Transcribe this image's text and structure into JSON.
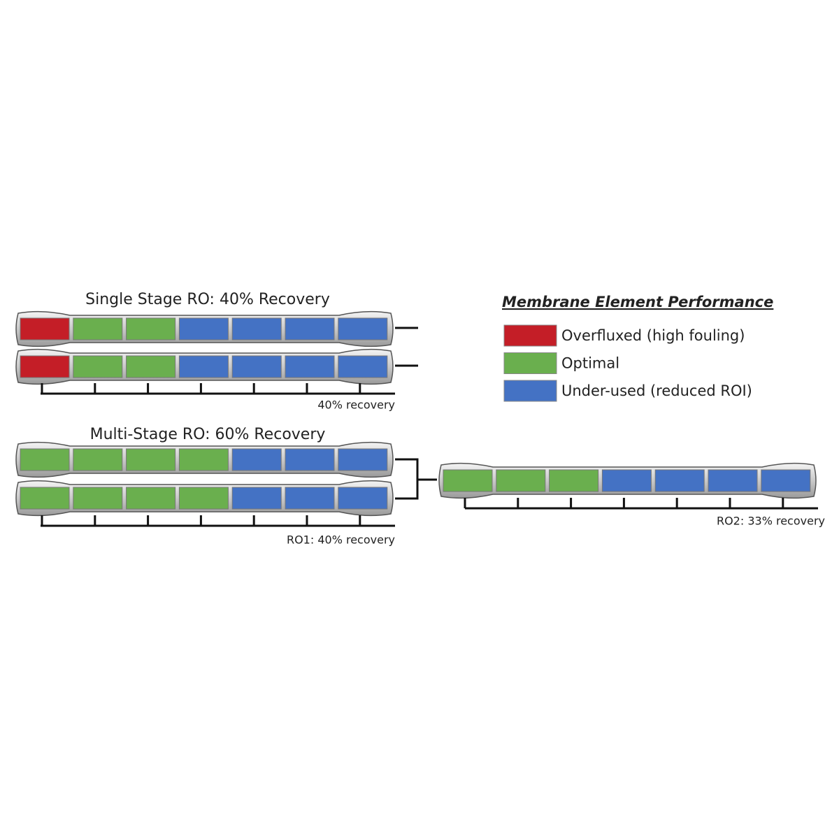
{
  "single": {
    "title": "Single Stage RO: 40% Recovery",
    "label": "40% recovery"
  },
  "multi": {
    "title": "Multi-Stage RO: 60% Recovery",
    "stage1_label": "RO1: 40% recovery",
    "stage2_label": "RO2: 33% recovery"
  },
  "legend": {
    "title": "Membrane Element Performance",
    "items": [
      {
        "label": "Overfluxed (high fouling)",
        "color": "#c41e27"
      },
      {
        "label": "Optimal",
        "color": "#6aaf4e"
      },
      {
        "label": "Under-used (reduced ROI)",
        "color": "#4472c4"
      }
    ]
  }
}
